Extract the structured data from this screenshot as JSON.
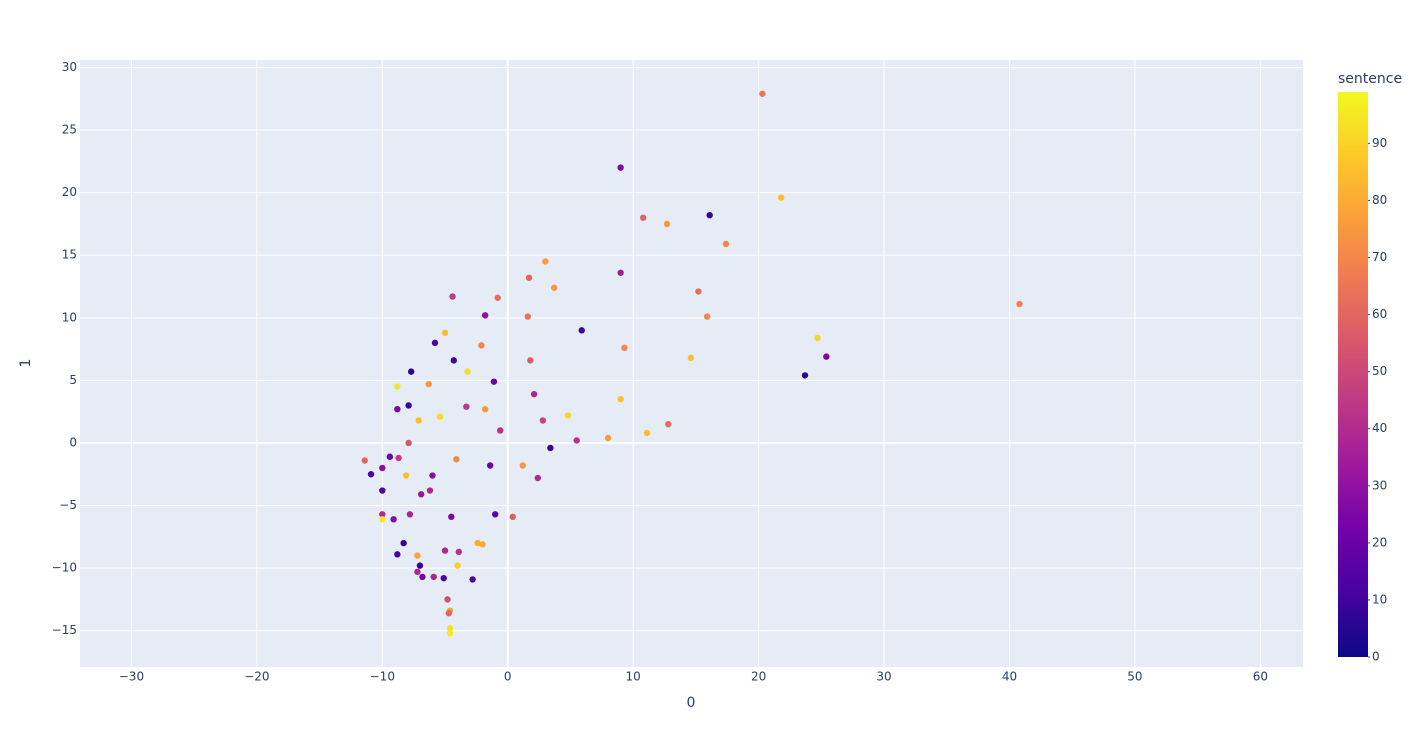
{
  "chart_data": {
    "type": "scatter",
    "x_label": "0",
    "y_label": "1",
    "colorbar_title": "sentence",
    "x": [
      20.3,
      9.0,
      21.8,
      16.1,
      10.8,
      12.7,
      17.4,
      3.0,
      9.0,
      1.7,
      3.7,
      15.2,
      -4.4,
      -0.8,
      40.8,
      -1.8,
      1.6,
      15.9,
      5.9,
      -5.0,
      24.7,
      -5.8,
      -2.1,
      9.3,
      25.4,
      14.6,
      -4.3,
      1.8,
      -7.7,
      -3.2,
      23.7,
      -1.1,
      -6.3,
      -8.8,
      2.1,
      9.0,
      -7.9,
      -3.3,
      -8.8,
      -1.8,
      4.8,
      -5.4,
      -7.1,
      2.8,
      12.8,
      -0.6,
      11.1,
      8.0,
      5.5,
      -7.9,
      3.4,
      -9.4,
      -8.7,
      -4.1,
      -11.4,
      -1.4,
      1.2,
      -10.0,
      -10.9,
      -6.0,
      -8.1,
      2.4,
      -6.2,
      -10.0,
      -6.9,
      -10.0,
      -7.8,
      -10.0,
      -4.5,
      -1.0,
      0.4,
      -9.1,
      -2.4,
      -2.0,
      -8.3,
      -5.0,
      -3.9,
      -8.8,
      -7.2,
      -7.0,
      -4.0,
      -7.2,
      -6.8,
      -5.9,
      -5.1,
      -2.8,
      -4.8,
      -4.6,
      -4.7,
      -4.6,
      -4.6
    ],
    "y": [
      27.9,
      22.0,
      19.6,
      18.2,
      18.0,
      17.5,
      15.9,
      14.5,
      13.6,
      13.2,
      12.4,
      12.1,
      11.7,
      11.6,
      11.1,
      10.2,
      10.1,
      10.1,
      9.0,
      8.8,
      8.4,
      8.0,
      7.8,
      7.6,
      6.9,
      6.8,
      6.6,
      6.6,
      5.7,
      5.7,
      5.4,
      4.9,
      4.7,
      4.5,
      3.9,
      3.5,
      3.0,
      2.9,
      2.7,
      2.7,
      2.2,
      2.1,
      1.8,
      1.8,
      1.5,
      1.0,
      0.8,
      0.4,
      0.2,
      0.0,
      -0.4,
      -1.1,
      -1.2,
      -1.3,
      -1.4,
      -1.8,
      -1.8,
      -2.0,
      -2.5,
      -2.6,
      -2.6,
      -2.8,
      -3.8,
      -3.8,
      -4.1,
      -5.7,
      -5.7,
      -6.1,
      -5.9,
      -5.7,
      -5.9,
      -6.1,
      -8.0,
      -8.1,
      -8.0,
      -8.6,
      -8.7,
      -8.9,
      -9.0,
      -9.8,
      -9.8,
      -10.3,
      -10.7,
      -10.7,
      -10.8,
      -10.9,
      -12.5,
      -13.4,
      -13.6,
      -14.8,
      -15.2
    ],
    "color_values": [
      65,
      25,
      85,
      8,
      60,
      75,
      70,
      75,
      35,
      60,
      75,
      62,
      45,
      62,
      68,
      30,
      65,
      70,
      10,
      85,
      90,
      12,
      70,
      70,
      25,
      85,
      10,
      57,
      5,
      92,
      5,
      20,
      75,
      95,
      38,
      85,
      8,
      45,
      25,
      75,
      90,
      92,
      85,
      48,
      62,
      42,
      85,
      75,
      42,
      55,
      8,
      22,
      45,
      70,
      60,
      20,
      75,
      28,
      12,
      28,
      85,
      40,
      40,
      15,
      32,
      40,
      38,
      95,
      25,
      18,
      58,
      28,
      80,
      80,
      8,
      38,
      42,
      12,
      78,
      8,
      88,
      38,
      22,
      38,
      12,
      12,
      52,
      78,
      60,
      93,
      95
    ],
    "colorscale": [
      "#0d0887",
      "#46039f",
      "#7201a8",
      "#9c179e",
      "#bd3786",
      "#d8576b",
      "#ed7953",
      "#fb9f3a",
      "#fdca26",
      "#f0f921"
    ],
    "clim": [
      0,
      99
    ],
    "cticks": [
      0,
      10,
      20,
      30,
      40,
      50,
      60,
      70,
      80,
      90
    ],
    "xlim": [
      -34.1,
      63.4
    ],
    "xticks": [
      {
        "value": -30,
        "label": "−30"
      },
      {
        "value": -20,
        "label": "−20"
      },
      {
        "value": -10,
        "label": "−10"
      },
      0,
      10,
      20,
      30,
      40,
      50,
      60
    ],
    "ylim": [
      -17.9,
      30.6
    ],
    "yticks": [
      {
        "value": -15,
        "label": "−15"
      },
      {
        "value": -10,
        "label": "−10"
      },
      {
        "value": -5,
        "label": "−5"
      },
      0,
      5,
      10,
      15,
      20,
      25,
      30
    ],
    "grid": true
  }
}
